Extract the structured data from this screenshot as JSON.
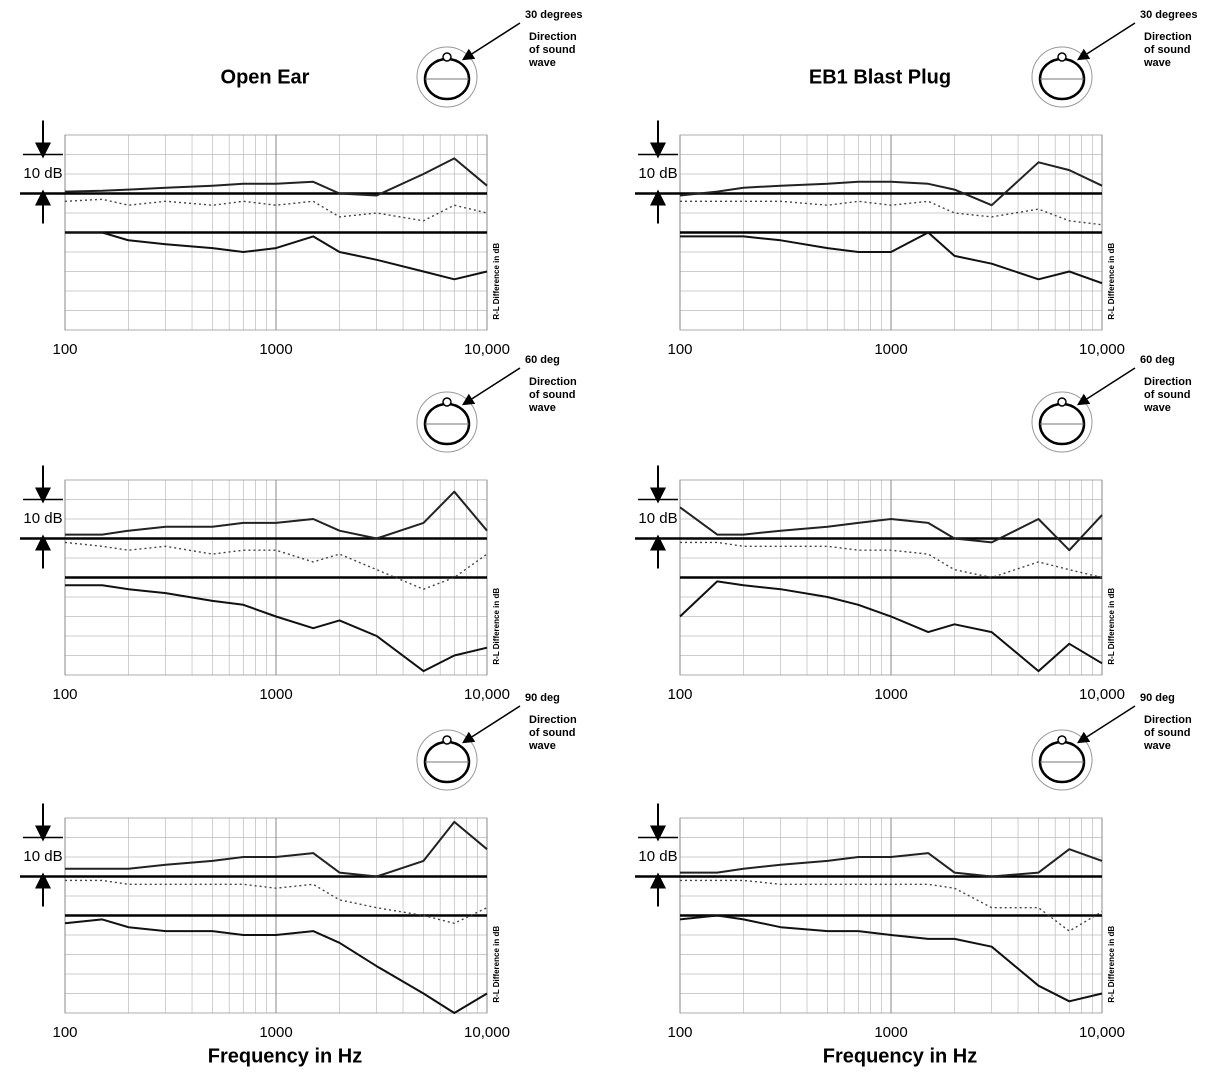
{
  "chart_data": [
    {
      "type": "line",
      "title": "Open Ear",
      "angle_label": "30 degrees",
      "direction_label": [
        "Direction",
        "of sound",
        "wave"
      ],
      "scale_label": "10 dB",
      "y2_label": "R-L Difference in dB",
      "xscale": "log",
      "xlim": [
        100,
        10000
      ],
      "xticks": [
        100,
        1000,
        {
          "value": 10000,
          "label": "10,000"
        }
      ],
      "ylim": [
        -35,
        15
      ],
      "hlines": [
        0,
        -10
      ],
      "grid": true,
      "x": [
        100,
        150,
        200,
        300,
        500,
        700,
        1000,
        1500,
        2000,
        3000,
        5000,
        7000,
        10000
      ],
      "series": [
        {
          "color": "#222",
          "dash": "solid",
          "values": [
            0.5,
            0.7,
            1,
            1.5,
            2,
            2.5,
            2.5,
            3,
            0,
            -0.5,
            5,
            9,
            2
          ]
        },
        {
          "color": "#444",
          "dash": "dotted",
          "values": [
            -2,
            -1.5,
            -3,
            -2,
            -3,
            -2,
            -3,
            -2,
            -6,
            -5,
            -7,
            -3,
            -5
          ]
        },
        {
          "color": "#111",
          "dash": "solid",
          "values": [
            -10,
            -10,
            -12,
            -13,
            -14,
            -15,
            -14,
            -11,
            -15,
            -17,
            -20,
            -22,
            -20
          ]
        }
      ]
    },
    {
      "type": "line",
      "title": "EB1 Blast Plug",
      "angle_label": "30 degrees",
      "direction_label": [
        "Direction",
        "of sound",
        "wave"
      ],
      "scale_label": "10 dB",
      "y2_label": "R-L Difference in dB",
      "xscale": "log",
      "xlim": [
        100,
        10000
      ],
      "xticks": [
        100,
        1000,
        {
          "value": 10000,
          "label": "10,000"
        }
      ],
      "ylim": [
        -35,
        15
      ],
      "hlines": [
        0,
        -10
      ],
      "grid": true,
      "x": [
        100,
        150,
        200,
        300,
        500,
        700,
        1000,
        1500,
        2000,
        3000,
        5000,
        7000,
        10000
      ],
      "series": [
        {
          "color": "#222",
          "dash": "solid",
          "values": [
            -0.5,
            0.5,
            1.5,
            2,
            2.5,
            3,
            3,
            2.5,
            1,
            -3,
            8,
            6,
            2
          ]
        },
        {
          "color": "#444",
          "dash": "dotted",
          "values": [
            -2,
            -2,
            -2,
            -2,
            -3,
            -2,
            -3,
            -2,
            -5,
            -6,
            -4,
            -7,
            -8
          ]
        },
        {
          "color": "#111",
          "dash": "solid",
          "values": [
            -11,
            -11,
            -11,
            -12,
            -14,
            -15,
            -15,
            -10,
            -16,
            -18,
            -22,
            -20,
            -23
          ]
        }
      ]
    },
    {
      "type": "line",
      "angle_label": "60 deg",
      "direction_label": [
        "Direction",
        "of sound",
        "wave"
      ],
      "scale_label": "10 dB",
      "y2_label": "R-L Difference in dB",
      "xscale": "log",
      "xlim": [
        100,
        10000
      ],
      "xticks": [
        100,
        1000,
        {
          "value": 10000,
          "label": "10,000"
        }
      ],
      "ylim": [
        -35,
        15
      ],
      "hlines": [
        0,
        -10
      ],
      "grid": true,
      "x": [
        100,
        150,
        200,
        300,
        500,
        700,
        1000,
        1500,
        2000,
        3000,
        5000,
        7000,
        10000
      ],
      "series": [
        {
          "color": "#222",
          "dash": "solid",
          "values": [
            1,
            1,
            2,
            3,
            3,
            4,
            4,
            5,
            2,
            0,
            4,
            12,
            2
          ]
        },
        {
          "color": "#444",
          "dash": "dotted",
          "values": [
            -1,
            -2,
            -3,
            -2,
            -4,
            -3,
            -3,
            -6,
            -4,
            -8,
            -13,
            -10,
            -4
          ]
        },
        {
          "color": "#111",
          "dash": "solid",
          "values": [
            -12,
            -12,
            -13,
            -14,
            -16,
            -17,
            -20,
            -23,
            -21,
            -25,
            -34,
            -30,
            -28
          ]
        }
      ]
    },
    {
      "type": "line",
      "angle_label": "60 deg",
      "direction_label": [
        "Direction",
        "of sound",
        "wave"
      ],
      "scale_label": "10 dB",
      "y2_label": "R-L Difference in dB",
      "xscale": "log",
      "xlim": [
        100,
        10000
      ],
      "xticks": [
        100,
        1000,
        {
          "value": 10000,
          "label": "10,000"
        }
      ],
      "ylim": [
        -35,
        15
      ],
      "hlines": [
        0,
        -10
      ],
      "grid": true,
      "x": [
        100,
        150,
        200,
        300,
        500,
        700,
        1000,
        1500,
        2000,
        3000,
        5000,
        7000,
        10000
      ],
      "series": [
        {
          "color": "#222",
          "dash": "solid",
          "values": [
            8,
            1,
            1,
            2,
            3,
            4,
            5,
            4,
            0,
            -1,
            5,
            -3,
            6
          ]
        },
        {
          "color": "#444",
          "dash": "dotted",
          "values": [
            -1,
            -1,
            -2,
            -2,
            -2,
            -3,
            -3,
            -4,
            -8,
            -10,
            -6,
            -8,
            -10
          ]
        },
        {
          "color": "#111",
          "dash": "solid",
          "values": [
            -20,
            -11,
            -12,
            -13,
            -15,
            -17,
            -20,
            -24,
            -22,
            -24,
            -34,
            -27,
            -32
          ]
        }
      ]
    },
    {
      "type": "line",
      "angle_label": "90 deg",
      "direction_label": [
        "Direction",
        "of sound",
        "wave"
      ],
      "scale_label": "10 dB",
      "y2_label": "R-L Difference in dB",
      "xlabel": "Frequency in Hz",
      "xscale": "log",
      "xlim": [
        100,
        10000
      ],
      "xticks": [
        100,
        1000,
        {
          "value": 10000,
          "label": "10,000"
        }
      ],
      "ylim": [
        -35,
        15
      ],
      "hlines": [
        0,
        -10
      ],
      "grid": true,
      "x": [
        100,
        150,
        200,
        300,
        500,
        700,
        1000,
        1500,
        2000,
        3000,
        5000,
        7000,
        10000
      ],
      "series": [
        {
          "color": "#222",
          "dash": "solid",
          "values": [
            2,
            2,
            2,
            3,
            4,
            5,
            5,
            6,
            1,
            0,
            4,
            14,
            7
          ]
        },
        {
          "color": "#444",
          "dash": "dotted",
          "values": [
            -1,
            -1,
            -2,
            -2,
            -2,
            -2,
            -3,
            -2,
            -6,
            -8,
            -10,
            -12,
            -8
          ]
        },
        {
          "color": "#111",
          "dash": "solid",
          "values": [
            -12,
            -11,
            -13,
            -14,
            -14,
            -15,
            -15,
            -14,
            -17,
            -23,
            -30,
            -35,
            -30
          ]
        }
      ]
    },
    {
      "type": "line",
      "angle_label": "90 deg",
      "direction_label": [
        "Direction",
        "of sound",
        "wave"
      ],
      "scale_label": "10 dB",
      "y2_label": "R-L Difference in dB",
      "xlabel": "Frequency in Hz",
      "xscale": "log",
      "xlim": [
        100,
        10000
      ],
      "xticks": [
        100,
        1000,
        {
          "value": 10000,
          "label": "10,000"
        }
      ],
      "ylim": [
        -35,
        15
      ],
      "hlines": [
        0,
        -10
      ],
      "grid": true,
      "x": [
        100,
        150,
        200,
        300,
        500,
        700,
        1000,
        1500,
        2000,
        3000,
        5000,
        7000,
        10000
      ],
      "series": [
        {
          "color": "#222",
          "dash": "solid",
          "values": [
            1,
            1,
            2,
            3,
            4,
            5,
            5,
            6,
            1,
            0,
            1,
            7,
            4
          ]
        },
        {
          "color": "#444",
          "dash": "dotted",
          "values": [
            -1,
            -1,
            -1,
            -2,
            -2,
            -2,
            -2,
            -2,
            -3,
            -8,
            -8,
            -14,
            -9
          ]
        },
        {
          "color": "#111",
          "dash": "solid",
          "values": [
            -11,
            -10,
            -11,
            -13,
            -14,
            -14,
            -15,
            -16,
            -16,
            -18,
            -28,
            -32,
            -30
          ]
        }
      ]
    }
  ]
}
